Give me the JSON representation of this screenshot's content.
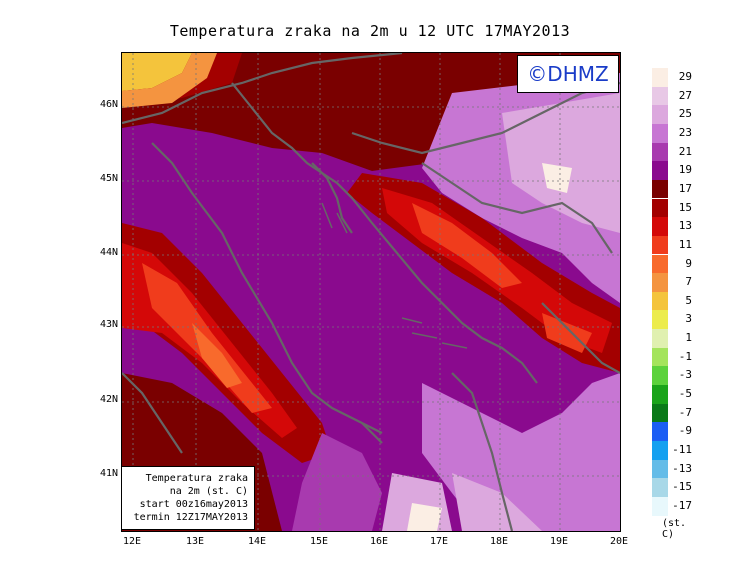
{
  "title": "Temperatura zraka na 2m u 12 UTC 17MAY2013",
  "logo": "©DHMZ",
  "info_box": {
    "line1": "Temperatura zraka",
    "line2": "na 2m (st. C)",
    "line3": "start 00z16may2013",
    "line4": "termin 12Z17MAY2013"
  },
  "lat_labels": [
    "46N",
    "45N",
    "44N",
    "43N",
    "42N",
    "41N"
  ],
  "lon_labels": [
    "12E",
    "13E",
    "14E",
    "15E",
    "16E",
    "17E",
    "18E",
    "19E",
    "20E"
  ],
  "legend": {
    "unit": "(st. C)",
    "labels": [
      "29",
      "27",
      "25",
      "23",
      "21",
      "19",
      "17",
      "15",
      "13",
      "11",
      "9",
      "7",
      "5",
      "3",
      "1",
      "-1",
      "-3",
      "-5",
      "-7",
      "-9",
      "-11",
      "-13",
      "-15",
      "-17"
    ],
    "colors": [
      "#fbeee4",
      "#e8c8e6",
      "#dca8de",
      "#c776d3",
      "#a83aaf",
      "#8a0a8e",
      "#7a0000",
      "#a30000",
      "#d40808",
      "#f03c1c",
      "#f86a2c",
      "#f49440",
      "#f4c43c",
      "#ecec4c",
      "#e0f0b0",
      "#a4e45c",
      "#5cd23c",
      "#1aa41a",
      "#0a7a18",
      "#1c5ef4",
      "#14a0f0",
      "#64bce8",
      "#a8d8e8",
      "#e8f8fc"
    ]
  }
}
